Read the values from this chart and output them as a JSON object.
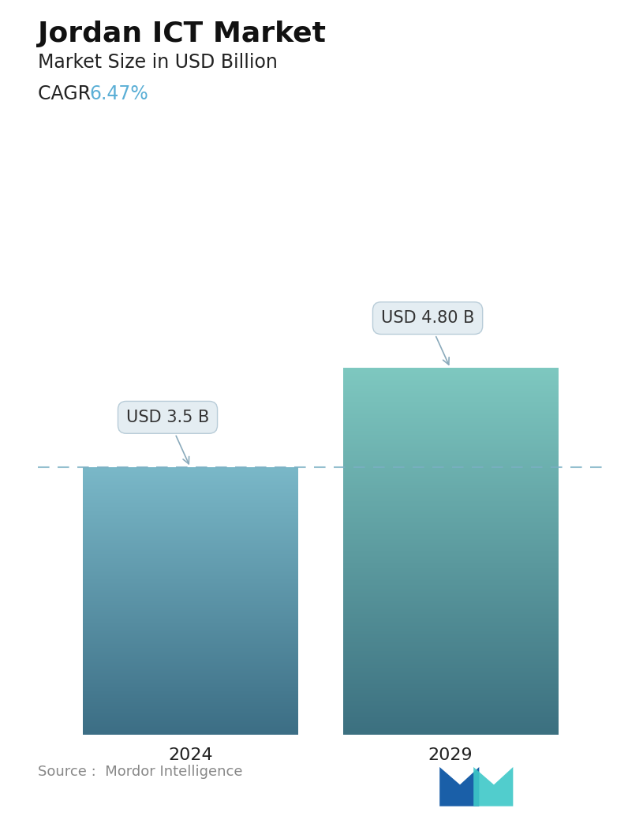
{
  "title": "Jordan ICT Market",
  "subtitle": "Market Size in USD Billion",
  "cagr_label": "CAGR  ",
  "cagr_value": "6.47%",
  "cagr_color": "#5bafd6",
  "categories": [
    "2024",
    "2029"
  ],
  "values": [
    3.5,
    4.8
  ],
  "bar_labels": [
    "USD 3.5 B",
    "USD 4.80 B"
  ],
  "bar_color_top": "#7ab8c8",
  "bar_color_bottom": "#3c6e85",
  "bar_color_top2": "#7ec8c0",
  "bar_color_bottom2": "#3c7080",
  "dashed_line_y": 3.5,
  "dashed_line_color": "#7aafc4",
  "ylim": [
    0,
    6.2
  ],
  "source_text": "Source :  Mordor Intelligence",
  "source_color": "#888888",
  "background_color": "#ffffff",
  "title_fontsize": 26,
  "subtitle_fontsize": 17,
  "cagr_fontsize": 17,
  "tick_fontsize": 16,
  "label_fontsize": 15,
  "source_fontsize": 13,
  "bar_positions": [
    0.27,
    0.73
  ],
  "bar_width": 0.38
}
